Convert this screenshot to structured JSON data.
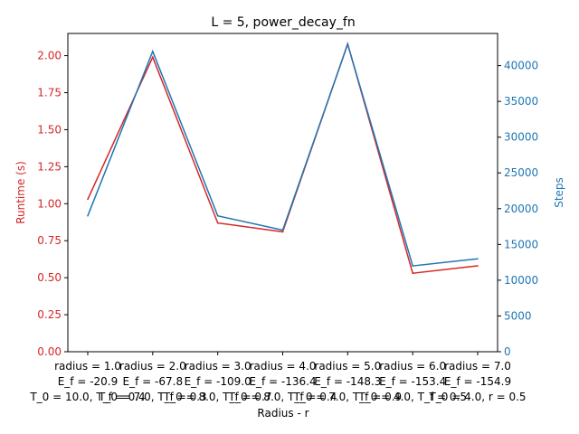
{
  "chart_data": {
    "type": "line",
    "title": "L = 5, power_decay_fn",
    "xlabel": "Radius - r",
    "ylabel_left": "Runtime (s)",
    "ylabel_right": "Steps",
    "colors": {
      "left": "#d62728",
      "right": "#1f77b4"
    },
    "categories": [
      [
        "radius = 1.0",
        "E_f = -20.9",
        "T_0 = 10.0, T_f = 0.4"
      ],
      [
        "radius = 2.0",
        "E_f = -67.8",
        "T_0 = 7.0, T_f = 0.3"
      ],
      [
        "radius = 3.0",
        "E_f = -109.0",
        "T_0 = 8.0, T_f = 0.7"
      ],
      [
        "radius = 4.0",
        "E_f = -136.4",
        "T_0 = 8.0, T_f = 0.4"
      ],
      [
        "radius = 5.0",
        "E_f = -148.3",
        "T_0 = 7.0, T_f = 0.9"
      ],
      [
        "radius = 6.0",
        "E_f = -153.4",
        "T_0 = 4.0, T_f = 0.5"
      ],
      [
        "radius = 7.0",
        "E_f = -154.9",
        "T_0 = 4.0, r = 0.5"
      ]
    ],
    "series": [
      {
        "axis": "left",
        "values": [
          1.03,
          1.99,
          0.87,
          0.81,
          2.08,
          0.53,
          0.58
        ]
      },
      {
        "axis": "right",
        "values": [
          19000,
          42000,
          19000,
          17000,
          43000,
          12000,
          13000
        ]
      }
    ],
    "ylim_left": [
      0,
      2.15
    ],
    "yticks_left": [
      "0.00",
      "0.25",
      "0.50",
      "0.75",
      "1.00",
      "1.25",
      "1.50",
      "1.75",
      "2.00"
    ],
    "ylim_right": [
      0,
      44500
    ],
    "yticks_right": [
      "0",
      "5000",
      "10000",
      "15000",
      "20000",
      "25000",
      "30000",
      "35000",
      "40000"
    ],
    "grid": false
  }
}
